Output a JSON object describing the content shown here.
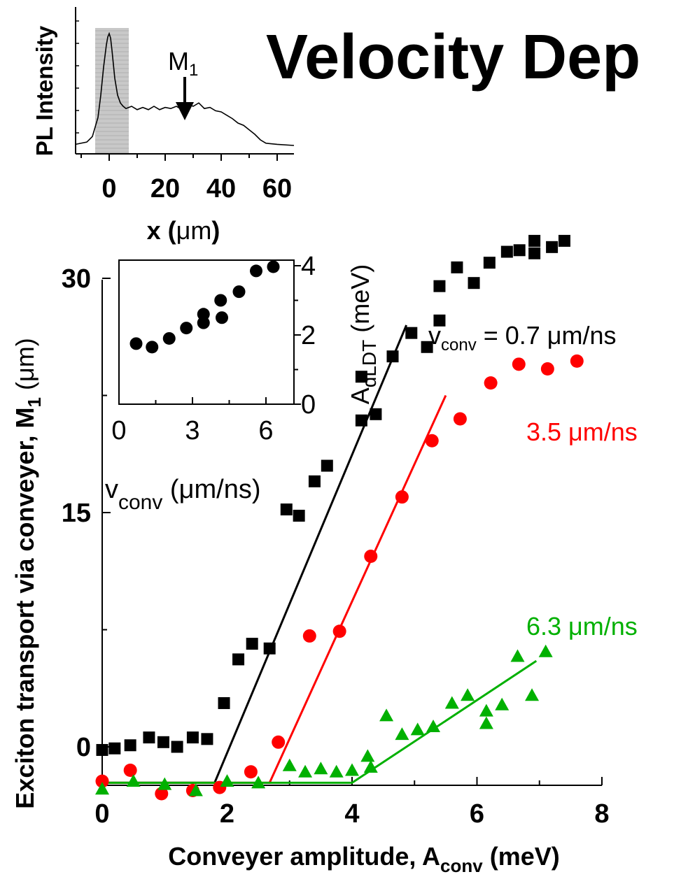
{
  "slide_title": "Velocity Dep",
  "chart_data": [
    {
      "type": "line",
      "role": "top-inset",
      "xlabel_main": "x (",
      "xlabel_unit": "μm",
      "xlabel_close": ")",
      "ylabel": "PL Intensity",
      "xlim": [
        -12,
        66
      ],
      "xticks": [
        0,
        20,
        40,
        60
      ],
      "xtick_labels": [
        "0",
        "20",
        "40",
        "60"
      ],
      "shaded_region": [
        -5,
        7
      ],
      "annotation_main": "M",
      "annotation_sub": "1",
      "annotation_x": 27,
      "profile": {
        "x": [
          -12,
          -8,
          -6,
          -4,
          -3,
          -2,
          -1,
          -0.5,
          0,
          0.5,
          1,
          2,
          3,
          4,
          5,
          6,
          8,
          10,
          12,
          14,
          16,
          18,
          20,
          22,
          24,
          26,
          28,
          30,
          32,
          34,
          36,
          38,
          40,
          42,
          44,
          46,
          48,
          50,
          52,
          54,
          56,
          60,
          66
        ],
        "y": [
          0.01,
          0.03,
          0.08,
          0.25,
          0.45,
          0.7,
          0.9,
          0.97,
          1.0,
          0.96,
          0.85,
          0.6,
          0.45,
          0.38,
          0.35,
          0.33,
          0.35,
          0.32,
          0.34,
          0.32,
          0.35,
          0.32,
          0.34,
          0.33,
          0.35,
          0.32,
          0.37,
          0.35,
          0.38,
          0.33,
          0.34,
          0.31,
          0.3,
          0.27,
          0.24,
          0.2,
          0.18,
          0.14,
          0.1,
          0.05,
          0.02,
          0.01,
          0.0
        ]
      }
    },
    {
      "type": "scatter",
      "role": "main",
      "xlabel_main": "Conveyer amplitude, A",
      "xlabel_sub": "conv",
      "xlabel_unit": " (meV)",
      "ylabel_main": "Exciton transport via conveyer, M",
      "ylabel_sub": "1",
      "ylabel_unit": " (μm)",
      "xlim": [
        0,
        8
      ],
      "ylim": [
        -3.5,
        40
      ],
      "xticks": [
        0,
        2,
        4,
        6,
        8
      ],
      "xtick_labels": [
        "0",
        "2",
        "4",
        "6",
        "8"
      ],
      "yticks": [
        0,
        15,
        30
      ],
      "ytick_labels": [
        "0",
        "15",
        "30"
      ],
      "series": [
        {
          "label_main": "v",
          "label_sub": "conv",
          "label_value": " = 0.7 μm/ns",
          "color": "#000000",
          "marker": "square",
          "x": [
            0,
            0.2,
            0.45,
            0.75,
            0.98,
            1.2,
            1.45,
            1.68,
            1.95,
            2.18,
            2.4,
            2.68,
            2.95,
            3.15,
            3.4,
            3.6,
            4.15,
            4.15,
            4.38,
            4.65,
            4.95,
            5.2,
            5.4,
            5.4,
            5.68,
            5.95,
            6.2,
            6.48,
            6.68,
            6.92,
            6.92,
            7.2,
            7.4
          ],
          "y": [
            -0.2,
            -0.1,
            0.1,
            0.6,
            0.3,
            0.0,
            0.6,
            0.5,
            2.8,
            5.6,
            6.6,
            6.3,
            15.2,
            14.8,
            17.0,
            18.0,
            20.9,
            23.7,
            21.3,
            25.0,
            26.5,
            25.6,
            27.3,
            29.5,
            30.7,
            29.7,
            31.0,
            31.7,
            31.8,
            32.4,
            31.6,
            32.0,
            32.4
          ]
        },
        {
          "label_value": "3.5 μm/ns",
          "color": "#ff0000",
          "marker": "circle",
          "x": [
            0,
            0.45,
            0.95,
            1.45,
            1.88,
            2.38,
            2.82,
            3.32,
            3.8,
            4.3,
            4.8,
            5.28,
            5.73,
            6.22,
            6.67,
            7.13,
            7.6
          ],
          "y": [
            -2.2,
            -1.5,
            -3.0,
            -2.8,
            -2.6,
            -1.6,
            0.3,
            7.1,
            7.4,
            12.2,
            16.0,
            19.6,
            21.0,
            23.3,
            24.5,
            24.2,
            24.7
          ]
        },
        {
          "label_value": "6.3 μm/ns",
          "color": "#00b000",
          "marker": "triangle",
          "x": [
            0,
            0.5,
            1.0,
            1.5,
            2.0,
            2.5,
            3.0,
            3.25,
            3.5,
            3.75,
            4.0,
            4.25,
            4.3,
            4.55,
            4.8,
            5.05,
            5.3,
            5.6,
            5.85,
            6.15,
            6.15,
            6.4,
            6.65,
            6.88,
            7.1
          ],
          "y": [
            -2.7,
            -2.2,
            -2.4,
            -2.8,
            -2.2,
            -2.3,
            -1.2,
            -1.6,
            -1.4,
            -1.6,
            -1.5,
            -0.6,
            -1.3,
            2.0,
            0.8,
            1.1,
            1.3,
            2.8,
            3.3,
            2.3,
            1.5,
            2.7,
            5.8,
            3.3,
            6.1
          ]
        }
      ],
      "fit_lines": [
        {
          "color": "#000000",
          "x": [
            0,
            1.8,
            4.87
          ],
          "y": [
            -2.3,
            -2.3,
            27.0
          ]
        },
        {
          "color": "#ff0000",
          "x": [
            0,
            2.68,
            5.5
          ],
          "y": [
            -2.3,
            -2.3,
            22.5
          ]
        },
        {
          "color": "#00b000",
          "x": [
            0,
            4.0,
            6.95
          ],
          "y": [
            -2.3,
            -2.3,
            5.5
          ]
        }
      ]
    },
    {
      "type": "scatter",
      "role": "inner-inset",
      "xlabel_main": "v",
      "xlabel_sub": "conv",
      "xlabel_unit": " (μm/ns)",
      "ylabel_main": "A",
      "ylabel_sub": "dLDT",
      "ylabel_unit": " (meV)",
      "xlim": [
        0,
        7
      ],
      "ylim": [
        0,
        4.2
      ],
      "xticks": [
        0,
        3,
        6
      ],
      "xtick_labels": [
        "0",
        "3",
        "6"
      ],
      "yticks": [
        0,
        2,
        4
      ],
      "ytick_labels": [
        "0",
        "2",
        "4"
      ],
      "color": "#000000",
      "x": [
        0.7,
        1.35,
        2.05,
        2.75,
        3.45,
        3.45,
        4.15,
        4.2,
        4.9,
        5.6,
        6.3
      ],
      "y": [
        1.75,
        1.65,
        1.9,
        2.2,
        2.6,
        2.35,
        3.0,
        2.5,
        3.25,
        3.85,
        3.97
      ]
    }
  ]
}
